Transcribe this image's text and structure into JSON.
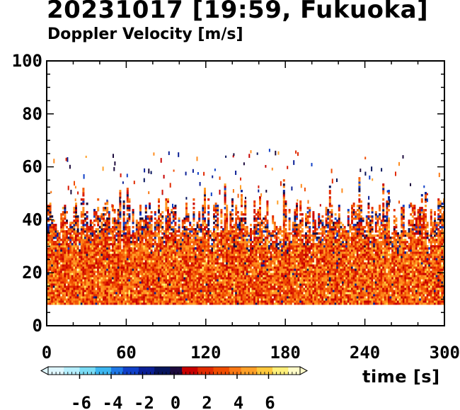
{
  "chart_data": {
    "type": "heatmap",
    "title": "20231017 [19:59, Fukuoka]",
    "subtitle": "Doppler Velocity [m/s]",
    "xlabel": "time [s]",
    "ylabel": "",
    "xlim": [
      0,
      300
    ],
    "ylim": [
      0,
      100
    ],
    "x_ticks": [
      0,
      60,
      120,
      180,
      240,
      300
    ],
    "y_ticks": [
      0,
      20,
      40,
      60,
      80,
      100
    ],
    "grid": false,
    "data_extent": {
      "height_min": 8,
      "height_typical_top": 45,
      "height_max": 67
    },
    "colorbar": {
      "orientation": "horizontal",
      "range": [
        -8,
        8
      ],
      "tick_values": [
        -6,
        -4,
        -2,
        0,
        2,
        4,
        6
      ],
      "tick_labels": [
        "-6",
        "-4",
        "-2",
        "0",
        "2",
        "4",
        "6"
      ],
      "extend": "both",
      "colors": [
        "#dff7ff",
        "#b6efff",
        "#7adcf5",
        "#3cb6f0",
        "#1e78e6",
        "#1040c8",
        "#0a1f96",
        "#06145c",
        "#1c0a3c",
        "#c80000",
        "#e12a00",
        "#f04c00",
        "#fa7814",
        "#ffa028",
        "#ffc83c",
        "#fff07a",
        "#fffcc8"
      ]
    }
  }
}
